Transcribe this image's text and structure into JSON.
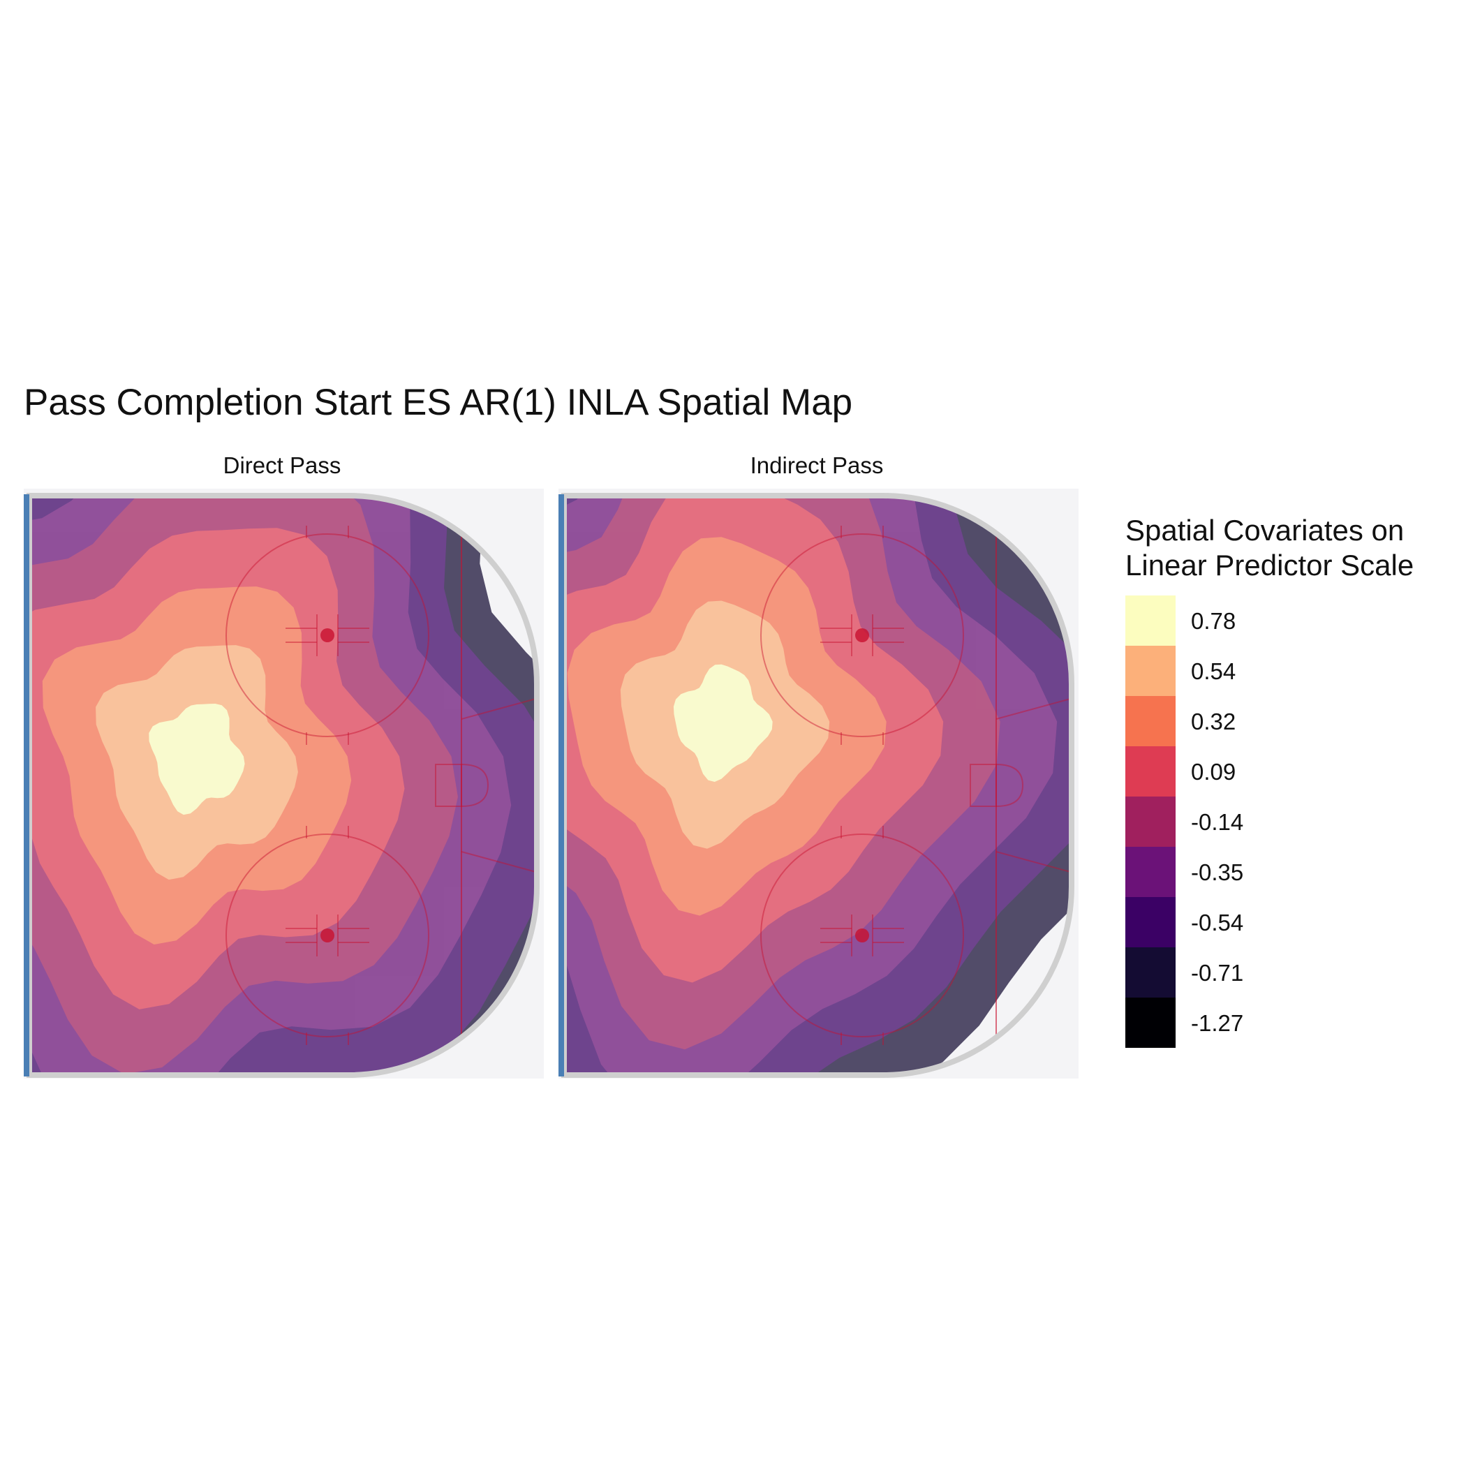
{
  "chart_data": {
    "type": "heatmap",
    "title": "Pass Completion Start ES AR(1) INLA Spatial Map",
    "facets": [
      {
        "label": "Direct Pass",
        "peak_level": 0.78,
        "edge_level": -0.71,
        "peak_center": [
          0.33,
          0.45
        ]
      },
      {
        "label": "Indirect Pass",
        "peak_level": 0.78,
        "edge_level": -0.71,
        "peak_center": [
          0.31,
          0.39
        ]
      }
    ],
    "legend": {
      "title_line1": "Spatial Covariates on",
      "title_line2": "Linear Predictor Scale",
      "placement": "right",
      "levels": [
        {
          "label": "0.78",
          "color": "#FCFDBF"
        },
        {
          "label": "0.54",
          "color": "#FCB07A"
        },
        {
          "label": "0.32",
          "color": "#F6734F"
        },
        {
          "label": "0.09",
          "color": "#DE3C53"
        },
        {
          "label": "-0.14",
          "color": "#A0205E"
        },
        {
          "label": "-0.35",
          "color": "#6B1278"
        },
        {
          "label": "-0.54",
          "color": "#3B0165"
        },
        {
          "label": "-0.71",
          "color": "#140C33"
        },
        {
          "label": "-1.27",
          "color": "#000004"
        }
      ]
    },
    "rink": {
      "board_color": "#cfcfcf",
      "blue_line_color": "#4a7fb5",
      "ice_color": "#f4f4f6",
      "marking_color": "#c8102e"
    }
  }
}
